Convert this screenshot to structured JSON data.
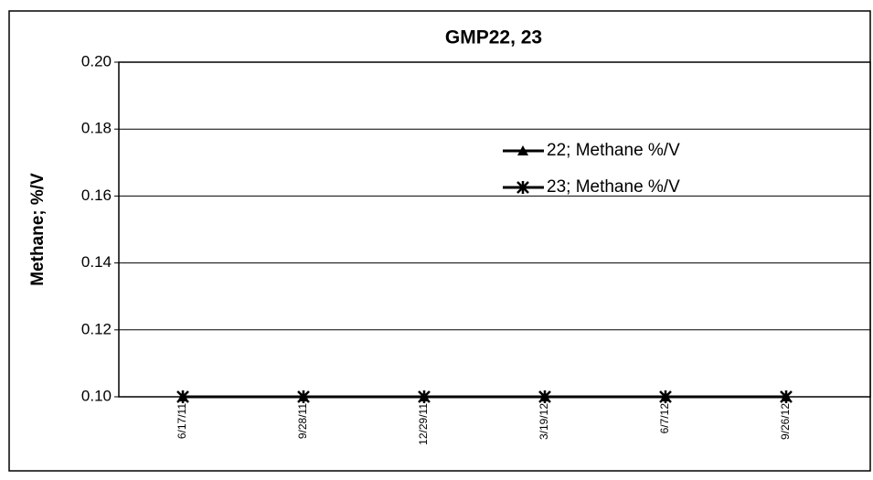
{
  "chart_data": {
    "type": "line",
    "title": "GMP22, 23",
    "ylabel": "Methane; %/V",
    "categories": [
      "6/17/11",
      "9/28/11",
      "12/29/11",
      "3/19/12",
      "6/7/12",
      "9/26/12"
    ],
    "series": [
      {
        "name": "22; Methane %/V",
        "color": "#000000",
        "marker": "triangle",
        "values": [
          0.1,
          0.1,
          0.1,
          0.1,
          0.1,
          0.1
        ]
      },
      {
        "name": "23; Methane %/V",
        "color": "#000000",
        "marker": "star",
        "values": [
          0.1,
          0.1,
          0.1,
          0.1,
          0.1,
          0.1
        ]
      }
    ],
    "ylim": [
      0.1,
      0.2
    ],
    "yticks": [
      {
        "value": 0.1,
        "label": "0.10"
      },
      {
        "value": 0.12,
        "label": "0.12"
      },
      {
        "value": 0.14,
        "label": "0.14"
      },
      {
        "value": 0.16,
        "label": "0.16"
      },
      {
        "value": 0.18,
        "label": "0.18"
      },
      {
        "value": 0.2,
        "label": "0.20"
      }
    ],
    "grid": true,
    "legend": "upper-right"
  }
}
